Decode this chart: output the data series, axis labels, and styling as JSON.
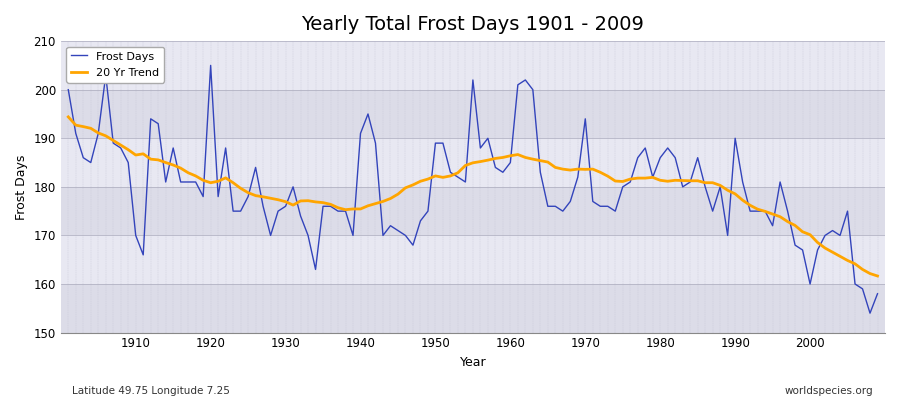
{
  "title": "Yearly Total Frost Days 1901 - 2009",
  "xlabel": "Year",
  "ylabel": "Frost Days",
  "footnote_left": "Latitude 49.75 Longitude 7.25",
  "footnote_right": "worldspecies.org",
  "years": [
    1901,
    1902,
    1903,
    1904,
    1905,
    1906,
    1907,
    1908,
    1909,
    1910,
    1911,
    1912,
    1913,
    1914,
    1915,
    1916,
    1917,
    1918,
    1919,
    1920,
    1921,
    1922,
    1923,
    1924,
    1925,
    1926,
    1927,
    1928,
    1929,
    1930,
    1931,
    1932,
    1933,
    1934,
    1935,
    1936,
    1937,
    1938,
    1939,
    1940,
    1941,
    1942,
    1943,
    1944,
    1945,
    1946,
    1947,
    1948,
    1949,
    1950,
    1951,
    1952,
    1953,
    1954,
    1955,
    1956,
    1957,
    1958,
    1959,
    1960,
    1961,
    1962,
    1963,
    1964,
    1965,
    1966,
    1967,
    1968,
    1969,
    1970,
    1971,
    1972,
    1973,
    1974,
    1975,
    1976,
    1977,
    1978,
    1979,
    1980,
    1981,
    1982,
    1983,
    1984,
    1985,
    1986,
    1987,
    1988,
    1989,
    1990,
    1991,
    1992,
    1993,
    1994,
    1995,
    1996,
    1997,
    1998,
    1999,
    2000,
    2001,
    2002,
    2003,
    2004,
    2005,
    2006,
    2007,
    2008,
    2009
  ],
  "frost_days": [
    200,
    191,
    186,
    185,
    191,
    203,
    189,
    188,
    185,
    170,
    166,
    194,
    193,
    181,
    188,
    181,
    181,
    181,
    178,
    205,
    178,
    188,
    175,
    175,
    178,
    184,
    176,
    170,
    175,
    176,
    180,
    174,
    170,
    163,
    176,
    176,
    175,
    175,
    170,
    191,
    195,
    189,
    170,
    172,
    171,
    170,
    168,
    173,
    175,
    189,
    189,
    183,
    182,
    181,
    202,
    188,
    190,
    184,
    183,
    185,
    201,
    202,
    200,
    183,
    176,
    176,
    175,
    177,
    182,
    194,
    177,
    176,
    176,
    175,
    180,
    181,
    186,
    188,
    182,
    186,
    188,
    186,
    180,
    181,
    186,
    180,
    175,
    180,
    170,
    190,
    181,
    175,
    175,
    175,
    172,
    181,
    175,
    168,
    167,
    160,
    167,
    170,
    171,
    170,
    175,
    160,
    159,
    154,
    158
  ],
  "ylim": [
    150,
    210
  ],
  "yticks": [
    150,
    160,
    170,
    180,
    190,
    200,
    210
  ],
  "xlim": [
    1900,
    2010
  ],
  "line_color": "#3344bb",
  "trend_color": "#ffa500",
  "bg_color_dark": "#dcdce8",
  "bg_color_light": "#e8e8f2",
  "grid_color": "#c8c8d8",
  "title_fontsize": 14,
  "label_fontsize": 9,
  "tick_fontsize": 8.5,
  "trend_window": 20
}
